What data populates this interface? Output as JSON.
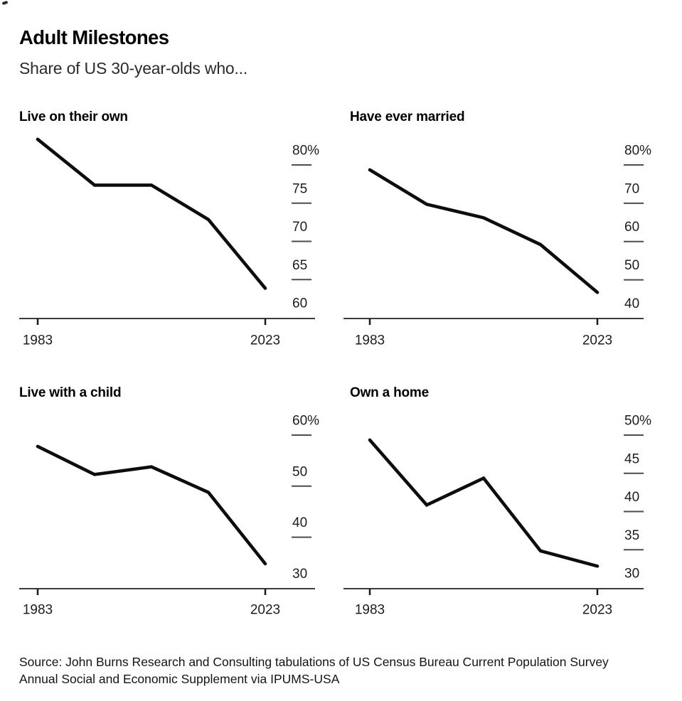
{
  "header": {
    "title": "Adult Milestones",
    "subtitle": "Share of US 30-year-olds who..."
  },
  "colors": {
    "line": "#0d0d0d",
    "axis": "#3d3d3d",
    "tick": "#1a1a1a",
    "tick_dash": "#4d4d4d",
    "label_text": "#1d1d1d"
  },
  "chart_data": [
    {
      "type": "line",
      "title": "Live on their own",
      "x": [
        1983,
        1993,
        2003,
        2013,
        2023
      ],
      "values": [
        81.5,
        75.5,
        75.5,
        71,
        62
      ],
      "y_ticks": [
        {
          "label": "80%",
          "value": 80
        },
        {
          "label": "75",
          "value": 75
        },
        {
          "label": "70",
          "value": 70
        },
        {
          "label": "65",
          "value": 65
        },
        {
          "label": "60",
          "value": 60
        }
      ],
      "x_ticks": [
        {
          "label": "1983",
          "value": 1983
        },
        {
          "label": "2023",
          "value": 2023
        }
      ],
      "unit": "%",
      "grid": false,
      "legend": "none"
    },
    {
      "type": "line",
      "title": "Have ever married",
      "x": [
        1983,
        1993,
        2003,
        2013,
        2023
      ],
      "values": [
        75,
        66,
        62.5,
        55.5,
        43
      ],
      "y_ticks": [
        {
          "label": "80%",
          "value": 80
        },
        {
          "label": "70",
          "value": 70
        },
        {
          "label": "60",
          "value": 60
        },
        {
          "label": "50",
          "value": 50
        },
        {
          "label": "40",
          "value": 40
        }
      ],
      "x_ticks": [
        {
          "label": "1983",
          "value": 1983
        },
        {
          "label": "2023",
          "value": 2023
        }
      ],
      "unit": "%",
      "grid": false,
      "legend": "none"
    },
    {
      "type": "line",
      "title": "Live with a child",
      "x": [
        1983,
        1993,
        2003,
        2013,
        2023
      ],
      "values": [
        55,
        49.5,
        51,
        46,
        32
      ],
      "y_ticks": [
        {
          "label": "60%",
          "value": 60
        },
        {
          "label": "50",
          "value": 50
        },
        {
          "label": "40",
          "value": 40
        },
        {
          "label": "30",
          "value": 30
        }
      ],
      "x_ticks": [
        {
          "label": "1983",
          "value": 1983
        },
        {
          "label": "2023",
          "value": 2023
        }
      ],
      "unit": "%",
      "grid": false,
      "legend": "none"
    },
    {
      "type": "line",
      "title": "Own a home",
      "x": [
        1983,
        1993,
        2003,
        2013,
        2023
      ],
      "values": [
        47.5,
        39,
        42.5,
        33,
        31
      ],
      "y_ticks": [
        {
          "label": "50%",
          "value": 50
        },
        {
          "label": "45",
          "value": 45
        },
        {
          "label": "40",
          "value": 40
        },
        {
          "label": "35",
          "value": 35
        },
        {
          "label": "30",
          "value": 30
        }
      ],
      "x_ticks": [
        {
          "label": "1983",
          "value": 1983
        },
        {
          "label": "2023",
          "value": 2023
        }
      ],
      "unit": "%",
      "grid": false,
      "legend": "none"
    }
  ],
  "footer": {
    "source_lines": [
      "Source: John Burns Research and Consulting tabulations of US Census Bureau Current Population Survey",
      "Annual Social and Economic Supplement via IPUMS-USA"
    ]
  }
}
